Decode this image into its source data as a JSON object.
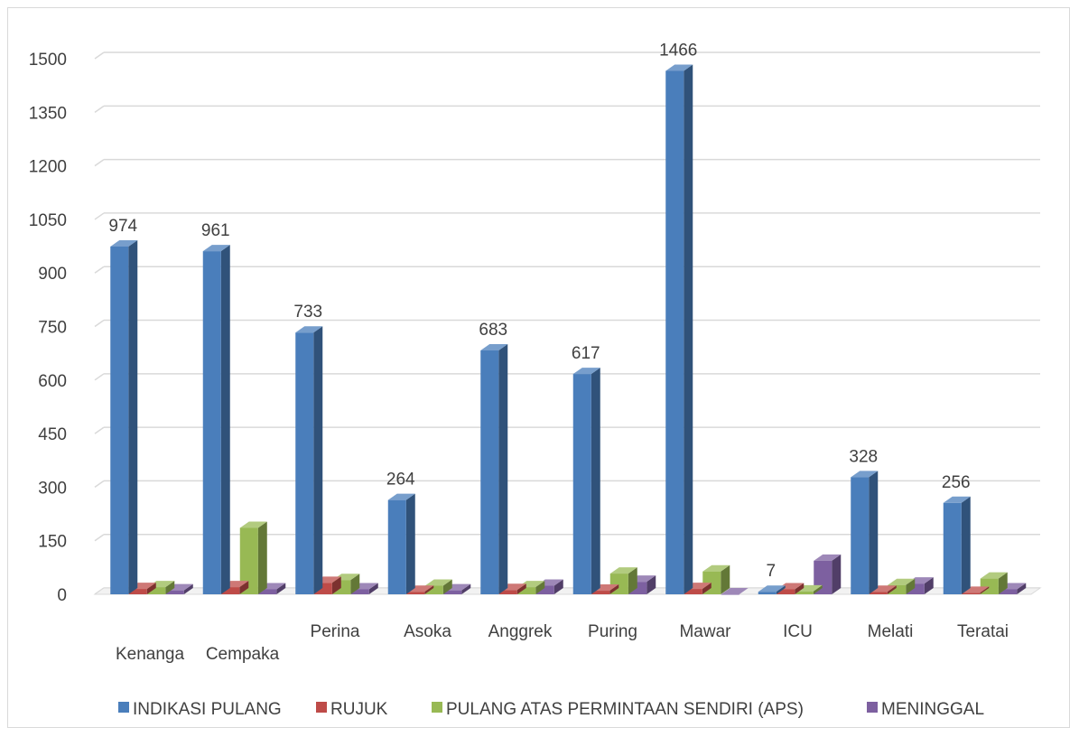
{
  "chart_data": {
    "type": "bar",
    "categories": [
      "Kenanga",
      "Cempaka",
      "Perina",
      "Asoka",
      "Anggrek",
      "Puring",
      "Mawar",
      "ICU",
      "Melati",
      "Teratai"
    ],
    "series": [
      {
        "name": "INDIKASI PULANG",
        "color": "#4a7ebb",
        "values": [
          974,
          961,
          733,
          264,
          683,
          617,
          1466,
          7,
          328,
          256
        ]
      },
      {
        "name": "RUJUK",
        "color": "#be4b48",
        "values": [
          15,
          20,
          32,
          7,
          12,
          10,
          15,
          14,
          7,
          4
        ]
      },
      {
        "name": "PULANG ATAS PERMINTAAN SENDIRI (APS)",
        "color": "#98b954",
        "values": [
          20,
          186,
          40,
          24,
          20,
          58,
          64,
          8,
          26,
          44
        ]
      },
      {
        "name": "MENINGGAL",
        "color": "#7d60a0",
        "values": [
          11,
          14,
          14,
          11,
          24,
          35,
          0,
          94,
          30,
          14
        ]
      }
    ],
    "data_labels": [
      "974",
      "961",
      "733",
      "264",
      "683",
      "617",
      "1466",
      "7",
      "328",
      "256"
    ],
    "y_ticks": [
      "0",
      "150",
      "300",
      "450",
      "600",
      "750",
      "900",
      "1050",
      "1200",
      "1350",
      "1500"
    ],
    "ylim": [
      0,
      1500
    ],
    "title": "",
    "xlabel": "",
    "ylabel": "",
    "grid": true,
    "legend_position": "bottom"
  }
}
